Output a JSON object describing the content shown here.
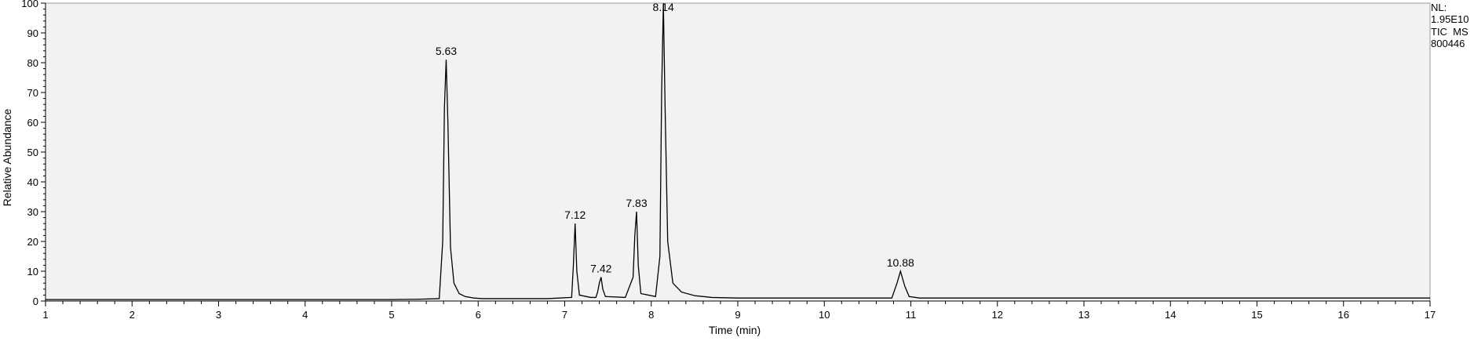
{
  "chart_data": {
    "type": "line",
    "title": "",
    "xlabel": "Time (min)",
    "ylabel": "Relative Abundance",
    "xlim": [
      1,
      17
    ],
    "ylim": [
      0,
      100
    ],
    "x_ticks": [
      "1",
      "2",
      "3",
      "4",
      "5",
      "6",
      "7",
      "8",
      "9",
      "10",
      "11",
      "12",
      "13",
      "14",
      "15",
      "16",
      "17"
    ],
    "y_ticks": [
      "0",
      "10",
      "20",
      "30",
      "40",
      "50",
      "60",
      "70",
      "80",
      "90",
      "100"
    ],
    "grid": false,
    "plot_background": "#f2f2f2",
    "line_color": "#000000",
    "header_info": [
      "NL:",
      "1.95E10",
      "TIC  MS",
      "800446"
    ],
    "peaks": [
      {
        "rt": 5.63,
        "label": "5.63",
        "height": 81
      },
      {
        "rt": 7.12,
        "label": "7.12",
        "height": 26
      },
      {
        "rt": 7.42,
        "label": "7.42",
        "height": 8
      },
      {
        "rt": 7.83,
        "label": "7.83",
        "height": 30
      },
      {
        "rt": 8.14,
        "label": "8.14",
        "height": 100
      },
      {
        "rt": 10.88,
        "label": "10.88",
        "height": 10
      }
    ],
    "series": [
      {
        "x": [
          1,
          5.0,
          5.3,
          5.55,
          5.59,
          5.61,
          5.63,
          5.65,
          5.68,
          5.72,
          5.78,
          5.85,
          5.95,
          6.05,
          6.8,
          7.08,
          7.1,
          7.12,
          7.14,
          7.17,
          7.3,
          7.36,
          7.38,
          7.4,
          7.42,
          7.44,
          7.47,
          7.7,
          7.79,
          7.81,
          7.83,
          7.85,
          7.88,
          8.05,
          8.1,
          8.12,
          8.14,
          8.16,
          8.19,
          8.25,
          8.35,
          8.5,
          8.7,
          9.0,
          10.78,
          10.84,
          10.88,
          10.93,
          10.98,
          11.1,
          17
        ],
        "y": [
          0.5,
          0.5,
          0.6,
          0.8,
          20,
          65,
          81,
          60,
          18,
          6,
          2.5,
          1.5,
          1.0,
          0.8,
          0.8,
          1.2,
          12,
          26,
          10,
          2,
          1.2,
          1.2,
          3,
          6,
          8,
          4,
          1.5,
          1.2,
          8,
          22,
          30,
          12,
          2.5,
          1.5,
          15,
          70,
          100,
          65,
          20,
          6,
          3,
          1.8,
          1.2,
          1.0,
          1.0,
          6,
          10,
          5,
          1.5,
          1.0,
          1.0
        ]
      }
    ]
  }
}
